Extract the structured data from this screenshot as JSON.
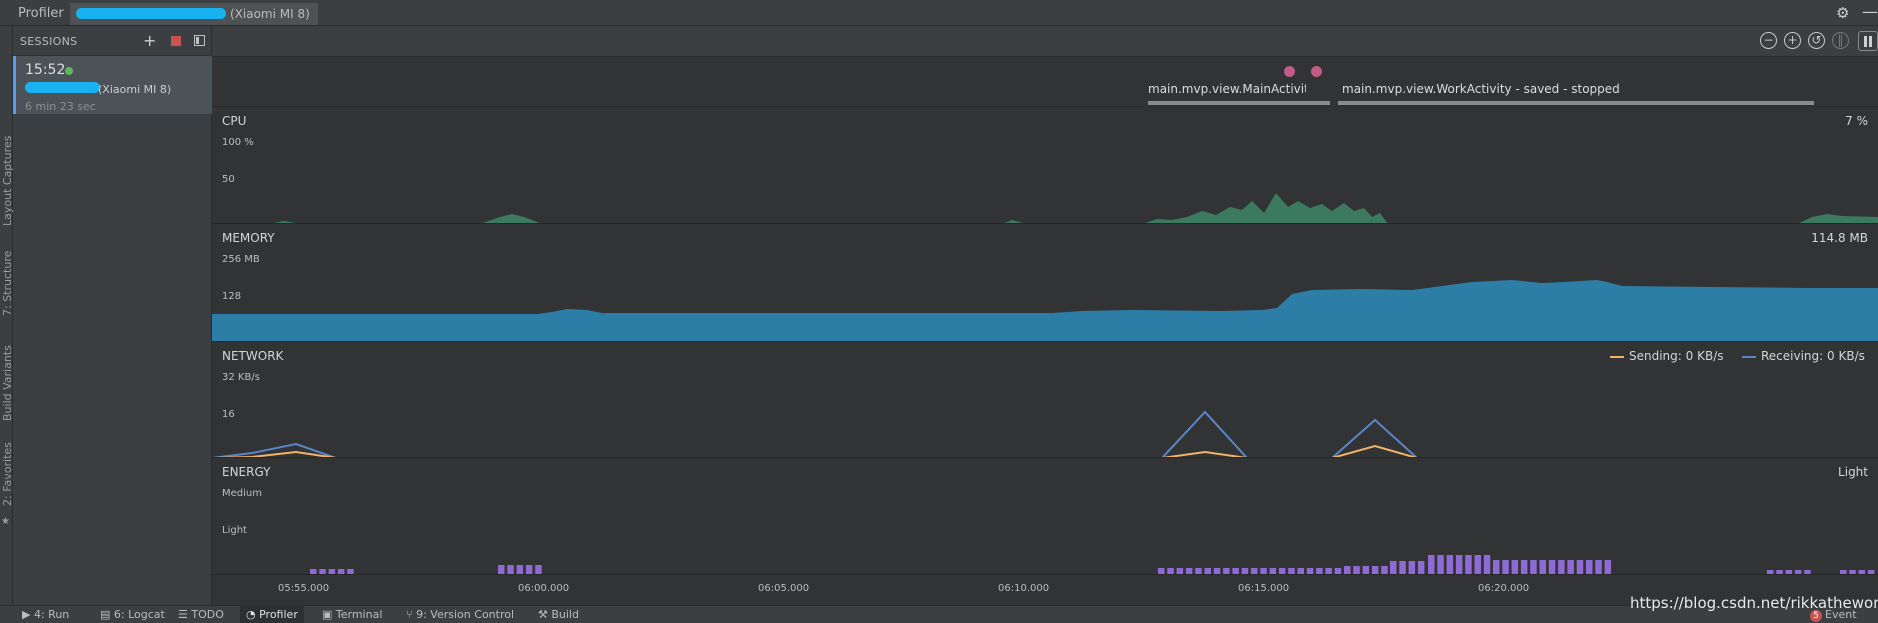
{
  "header": {
    "title": "Profiler",
    "device": "(Xiaomi MI 8)"
  },
  "left_stripe": [
    "Layout Captures",
    "7: Structure",
    "Build Variants",
    "2: Favorites"
  ],
  "sessions": {
    "label": "SESSIONS",
    "item": {
      "time": "15:52",
      "device": "(Xiaomi MI 8)",
      "duration": "6 min 23 sec"
    }
  },
  "activities": [
    {
      "label": "main.mvp.view.MainActivity - s..."
    },
    {
      "label": "main.mvp.view.WorkActivity - saved - stopped"
    }
  ],
  "cpu": {
    "name": "CPU",
    "value": "7 %",
    "ticks": [
      "100 %",
      "50"
    ]
  },
  "memory": {
    "name": "MEMORY",
    "value": "114.8 MB",
    "ticks": [
      "256 MB",
      "128"
    ]
  },
  "network": {
    "name": "NETWORK",
    "ticks": [
      "32 KB/s",
      "16"
    ],
    "sending": "Sending: 0 KB/s",
    "receiving": "Receiving: 0 KB/s"
  },
  "energy": {
    "name": "ENERGY",
    "value": "Light",
    "ticks": [
      "Medium",
      "Light"
    ]
  },
  "time_axis": [
    "05:55.000",
    "06:00.000",
    "06:05.000",
    "06:10.000",
    "06:15.000",
    "06:20.000"
  ],
  "bottom_tabs": [
    {
      "label": "4: Run",
      "icon": "play-icon"
    },
    {
      "label": "6: Logcat",
      "icon": "logcat-icon"
    },
    {
      "label": "TODO",
      "icon": "list-icon"
    },
    {
      "label": "Profiler",
      "icon": "profiler-icon"
    },
    {
      "label": "Terminal",
      "icon": "terminal-icon"
    },
    {
      "label": "9: Version Control",
      "icon": "vcs-icon"
    },
    {
      "label": "Build",
      "icon": "hammer-icon"
    }
  ],
  "event_log": {
    "label": "Event Log",
    "count": "5"
  },
  "watermark": "https://blog.csdn.net/rikkatheworld",
  "colors": {
    "cpu": "#3b7a5f",
    "memory": "#2c7ea7",
    "sending": "#f2b26b",
    "receiving": "#5a86c8",
    "energy": "#8e6ad4",
    "event_dot": "#c15c86"
  }
}
